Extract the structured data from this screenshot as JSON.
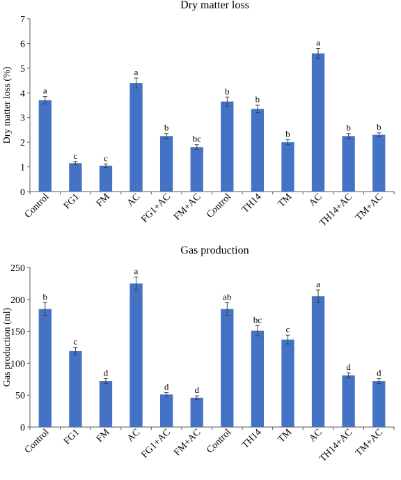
{
  "chart_data": [
    {
      "type": "bar",
      "title": "Dry matter loss",
      "ylabel": "Dry matter loss (%)",
      "xlabel": "",
      "ylim": [
        0,
        7
      ],
      "yticks": [
        0,
        1,
        2,
        3,
        4,
        5,
        6,
        7
      ],
      "grid": false,
      "bar_color": "#4472C4",
      "categories": [
        "Control",
        "FG1",
        "FM",
        "AC",
        "FG1+AC",
        "FM+AC",
        "Control",
        "TH14",
        "TM",
        "AC",
        "TH14+AC",
        "TM+AC"
      ],
      "values": [
        3.7,
        1.15,
        1.05,
        4.4,
        2.25,
        1.8,
        3.65,
        3.35,
        2.0,
        5.6,
        2.25,
        2.3
      ],
      "errors": [
        0.15,
        0.07,
        0.07,
        0.2,
        0.1,
        0.1,
        0.18,
        0.15,
        0.1,
        0.2,
        0.1,
        0.08
      ],
      "significance": [
        "a",
        "c",
        "c",
        "a",
        "b",
        "bc",
        "b",
        "b",
        "b",
        "a",
        "b",
        "b"
      ]
    },
    {
      "type": "bar",
      "title": "Gas production",
      "ylabel": "Gas production (ml)",
      "xlabel": "",
      "ylim": [
        0,
        250
      ],
      "yticks": [
        0,
        50,
        100,
        150,
        200,
        250
      ],
      "grid": false,
      "bar_color": "#4472C4",
      "categories": [
        "Control",
        "FG1",
        "FM",
        "AC",
        "FG1+AC",
        "FM+AC",
        "Control",
        "TH14",
        "TM",
        "AC",
        "TH14+AC",
        "TM+AC"
      ],
      "values": [
        185,
        119,
        72,
        225,
        51,
        46,
        185,
        151,
        137,
        205,
        81,
        72
      ],
      "errors": [
        10,
        6,
        4,
        10,
        3,
        3,
        10,
        8,
        7,
        10,
        4,
        4
      ],
      "significance": [
        "b",
        "c",
        "d",
        "a",
        "d",
        "d",
        "ab",
        "bc",
        "c",
        "a",
        "d",
        "d"
      ]
    }
  ]
}
